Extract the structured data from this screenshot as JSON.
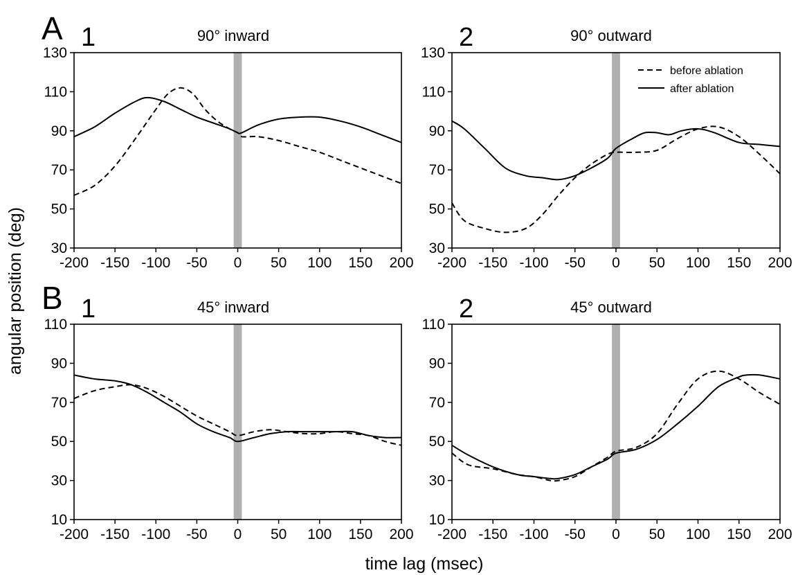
{
  "figure": {
    "ylabel": "angular position (deg)",
    "xlabel": "time lag (msec)",
    "rows": [
      {
        "letter": "A"
      },
      {
        "letter": "B"
      }
    ]
  },
  "legend": {
    "entries": [
      {
        "label": "before ablation",
        "style": "dashed"
      },
      {
        "label": "after ablation",
        "style": "solid"
      }
    ]
  },
  "colors": {
    "lines": "#000000",
    "stimulus_bar": "#b0b0b0"
  },
  "chart_data": [
    {
      "type": "line",
      "panel": "1",
      "row": "A",
      "title": "90°  inward",
      "xlabel": "time lag (msec)",
      "ylabel": "angular position (deg)",
      "xlim": [
        -200,
        200
      ],
      "ylim": [
        30,
        130
      ],
      "xticks": [
        -200,
        -150,
        -100,
        -50,
        0,
        50,
        100,
        150,
        200
      ],
      "yticks": [
        30,
        50,
        70,
        90,
        110,
        130
      ],
      "stimulus_band": [
        -5,
        5
      ],
      "grid": false,
      "series": [
        {
          "name": "before ablation",
          "style": "dashed",
          "x": [
            -200,
            -175,
            -150,
            -125,
            -100,
            -85,
            -70,
            -55,
            -40,
            -25,
            -10,
            0,
            5,
            25,
            50,
            75,
            100,
            125,
            150,
            175,
            200
          ],
          "y": [
            57,
            62,
            72,
            86,
            101,
            109,
            112,
            109,
            101,
            95,
            91,
            89,
            87,
            87,
            85,
            82,
            79,
            75,
            71,
            67,
            63
          ]
        },
        {
          "name": "after ablation",
          "style": "solid",
          "x": [
            -200,
            -175,
            -150,
            -125,
            -110,
            -90,
            -70,
            -50,
            -30,
            -10,
            0,
            5,
            25,
            50,
            75,
            100,
            125,
            150,
            175,
            200
          ],
          "y": [
            87,
            92,
            99,
            105,
            107,
            105,
            101,
            97,
            94,
            91,
            89,
            89,
            93,
            96,
            97,
            97,
            95,
            92,
            88,
            84
          ]
        }
      ]
    },
    {
      "type": "line",
      "panel": "2",
      "row": "A",
      "title": "90°  outward",
      "xlabel": "time lag (msec)",
      "ylabel": "angular position (deg)",
      "xlim": [
        -200,
        200
      ],
      "ylim": [
        30,
        130
      ],
      "xticks": [
        -200,
        -150,
        -100,
        -50,
        0,
        50,
        100,
        150,
        200
      ],
      "yticks": [
        30,
        50,
        70,
        90,
        110,
        130
      ],
      "stimulus_band": [
        -5,
        5
      ],
      "grid": false,
      "legend_position": "top-right",
      "grid_on": false,
      "series": [
        {
          "name": "before ablation",
          "style": "dashed",
          "x": [
            -200,
            -185,
            -160,
            -135,
            -110,
            -90,
            -70,
            -50,
            -30,
            -10,
            0,
            25,
            50,
            75,
            100,
            125,
            150,
            175,
            200
          ],
          "y": [
            53,
            44,
            40,
            38,
            40,
            47,
            57,
            66,
            73,
            78,
            79,
            79,
            80,
            86,
            91,
            92,
            87,
            78,
            68
          ]
        },
        {
          "name": "after ablation",
          "style": "solid",
          "x": [
            -200,
            -185,
            -160,
            -135,
            -110,
            -90,
            -70,
            -50,
            -30,
            -10,
            0,
            20,
            35,
            50,
            65,
            80,
            100,
            120,
            150,
            175,
            200
          ],
          "y": [
            95,
            91,
            81,
            71,
            67,
            66,
            65,
            67,
            71,
            76,
            81,
            86,
            89,
            89,
            88,
            90,
            91,
            89,
            84,
            83,
            82
          ]
        }
      ]
    },
    {
      "type": "line",
      "panel": "1",
      "row": "B",
      "title": "45°  inward",
      "xlabel": "time lag (msec)",
      "ylabel": "angular position (deg)",
      "xlim": [
        -200,
        200
      ],
      "ylim": [
        10,
        110
      ],
      "xticks": [
        -200,
        -150,
        -100,
        -50,
        0,
        50,
        100,
        150,
        200
      ],
      "yticks": [
        10,
        30,
        50,
        70,
        90,
        110
      ],
      "stimulus_band": [
        -5,
        5
      ],
      "grid": false,
      "series": [
        {
          "name": "before ablation",
          "style": "dashed",
          "x": [
            -200,
            -175,
            -150,
            -130,
            -110,
            -90,
            -70,
            -50,
            -30,
            -10,
            0,
            20,
            40,
            60,
            80,
            100,
            120,
            140,
            160,
            180,
            200
          ],
          "y": [
            72,
            76,
            78,
            79,
            77,
            73,
            68,
            63,
            59,
            55,
            53,
            55,
            56,
            55,
            54,
            54,
            55,
            54,
            53,
            50,
            48
          ]
        },
        {
          "name": "after ablation",
          "style": "solid",
          "x": [
            -200,
            -175,
            -150,
            -130,
            -110,
            -90,
            -70,
            -50,
            -30,
            -10,
            0,
            20,
            40,
            60,
            80,
            100,
            120,
            140,
            160,
            180,
            200
          ],
          "y": [
            84,
            82,
            81,
            79,
            75,
            70,
            65,
            59,
            55,
            52,
            50,
            52,
            54,
            55,
            55,
            55,
            55,
            55,
            53,
            52,
            52
          ]
        }
      ]
    },
    {
      "type": "line",
      "panel": "2",
      "row": "B",
      "title": "45°  outward",
      "xlabel": "time lag (msec)",
      "ylabel": "angular position (deg)",
      "xlim": [
        -200,
        200
      ],
      "ylim": [
        10,
        110
      ],
      "xticks": [
        -200,
        -150,
        -100,
        -50,
        0,
        50,
        100,
        150,
        200
      ],
      "yticks": [
        10,
        30,
        50,
        70,
        90,
        110
      ],
      "stimulus_band": [
        -5,
        5
      ],
      "grid": false,
      "series": [
        {
          "name": "before ablation",
          "style": "dashed",
          "x": [
            -200,
            -180,
            -150,
            -120,
            -100,
            -80,
            -70,
            -50,
            -30,
            -10,
            0,
            25,
            50,
            75,
            100,
            125,
            150,
            175,
            200
          ],
          "y": [
            44,
            38,
            36,
            33,
            32,
            30,
            30,
            32,
            37,
            42,
            45,
            47,
            54,
            69,
            82,
            86,
            82,
            75,
            69
          ]
        },
        {
          "name": "after ablation",
          "style": "solid",
          "x": [
            -200,
            -180,
            -150,
            -120,
            -100,
            -80,
            -70,
            -50,
            -30,
            -10,
            0,
            25,
            50,
            75,
            100,
            125,
            150,
            160,
            175,
            200
          ],
          "y": [
            48,
            43,
            37,
            33,
            32,
            31,
            31,
            33,
            37,
            41,
            44,
            46,
            51,
            59,
            68,
            78,
            83,
            84,
            84,
            82
          ]
        }
      ]
    }
  ]
}
